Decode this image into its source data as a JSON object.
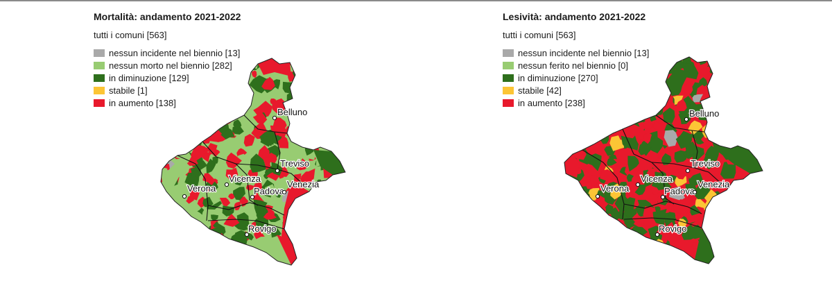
{
  "colors": {
    "grey": "#a9a9a9",
    "light_green": "#98cc72",
    "dark_green": "#2e6f1c",
    "yellow": "#fcc535",
    "red": "#e8192c"
  },
  "maps": [
    {
      "title": "Mortalità: andamento 2021-2022",
      "subtitle": "tutti i comuni [563]",
      "legend": [
        {
          "label": "nessun incidente nel biennio [13]",
          "color": "#a9a9a9"
        },
        {
          "label": "nessun morto nel biennio [282]",
          "color": "#98cc72"
        },
        {
          "label": "in diminuzione [129]",
          "color": "#2e6f1c"
        },
        {
          "label": "stabile [1]",
          "color": "#fcc535"
        },
        {
          "label": "in aumento [138]",
          "color": "#e8192c"
        }
      ],
      "cities": [
        "Belluno",
        "Treviso",
        "Vicenza",
        "Verona",
        "Padova",
        "Venezia",
        "Rovigo"
      ]
    },
    {
      "title": "Lesività: andamento 2021-2022",
      "subtitle": "tutti i comuni [563]",
      "legend": [
        {
          "label": "nessun incidente nel biennio [13]",
          "color": "#a9a9a9"
        },
        {
          "label": "nessun ferito nel biennio [0]",
          "color": "#98cc72"
        },
        {
          "label": "in diminuzione [270]",
          "color": "#2e6f1c"
        },
        {
          "label": "stabile [42]",
          "color": "#fcc535"
        },
        {
          "label": "in aumento [238]",
          "color": "#e8192c"
        }
      ],
      "cities": [
        "Belluno",
        "Treviso",
        "Vicenza",
        "Verona",
        "Padova",
        "Venezia",
        "Rovigo"
      ]
    }
  ]
}
